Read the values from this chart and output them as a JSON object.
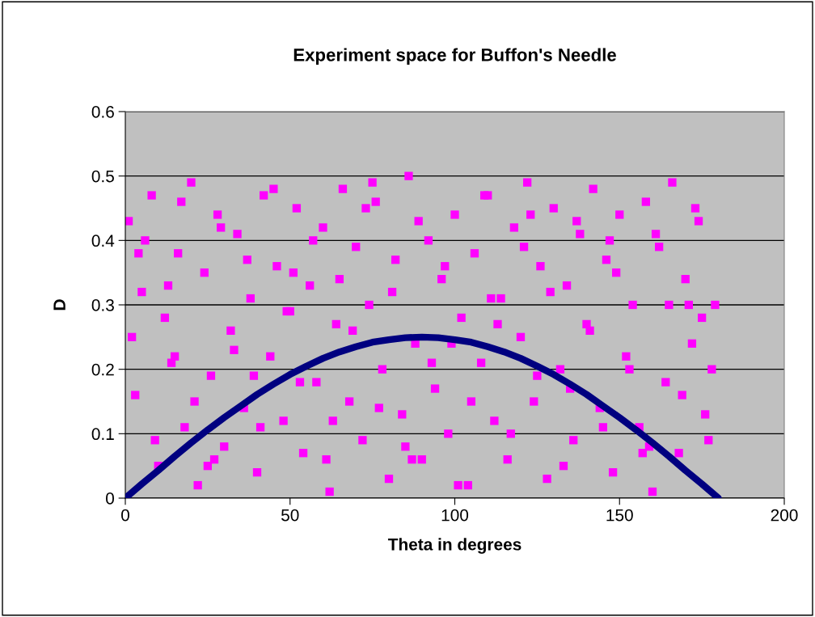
{
  "chart_data": {
    "type": "scatter",
    "title": "Experiment space for Buffon's Needle",
    "xlabel": "Theta in degrees",
    "ylabel": "D",
    "xlim": [
      0,
      200
    ],
    "ylim": [
      0,
      0.6
    ],
    "xticks": [
      0,
      50,
      100,
      150,
      200
    ],
    "yticks": [
      0,
      0.1,
      0.2,
      0.3,
      0.4,
      0.5,
      0.6
    ],
    "grid": "y",
    "legend": false,
    "series": [
      {
        "color": "#ff00ff",
        "marker": "square",
        "x": [
          1,
          3,
          5,
          8,
          10,
          12,
          14,
          16,
          18,
          20,
          22,
          24,
          26,
          28,
          30,
          32,
          34,
          36,
          38,
          40,
          42,
          44,
          46,
          48,
          50,
          52,
          54,
          56,
          58,
          60,
          62,
          64,
          66,
          68,
          70,
          72,
          74,
          76,
          78,
          80,
          82,
          84,
          86,
          88,
          90,
          92,
          94,
          96,
          98,
          100,
          102,
          104,
          106,
          108,
          110,
          112,
          114,
          116,
          118,
          120,
          122,
          124,
          126,
          128,
          130,
          132,
          134,
          136,
          138,
          140,
          142,
          144,
          146,
          148,
          150,
          152,
          154,
          156,
          158,
          160,
          162,
          164,
          166,
          168,
          170,
          172,
          174,
          176,
          178,
          179,
          2,
          6,
          9,
          13,
          17,
          21,
          25,
          29,
          33,
          37,
          41,
          45,
          49,
          53,
          57,
          61,
          65,
          69,
          73,
          77,
          81,
          85,
          89,
          93,
          97,
          101,
          105,
          109,
          113,
          117,
          121,
          125,
          129,
          133,
          137,
          141,
          145,
          149,
          153,
          157,
          161,
          165,
          169,
          173,
          177,
          4,
          15,
          27,
          39,
          51,
          63,
          75,
          87,
          99,
          111,
          123,
          135,
          147,
          159,
          171,
          175
        ],
        "values": [
          0.43,
          0.16,
          0.32,
          0.47,
          0.05,
          0.28,
          0.21,
          0.38,
          0.11,
          0.49,
          0.02,
          0.35,
          0.19,
          0.44,
          0.08,
          0.26,
          0.41,
          0.14,
          0.31,
          0.04,
          0.47,
          0.22,
          0.36,
          0.12,
          0.29,
          0.45,
          0.07,
          0.33,
          0.18,
          0.42,
          0.01,
          0.27,
          0.48,
          0.15,
          0.39,
          0.09,
          0.3,
          0.46,
          0.2,
          0.03,
          0.37,
          0.13,
          0.5,
          0.24,
          0.06,
          0.4,
          0.17,
          0.34,
          0.1,
          0.44,
          0.28,
          0.02,
          0.38,
          0.21,
          0.47,
          0.12,
          0.31,
          0.06,
          0.42,
          0.25,
          0.49,
          0.15,
          0.36,
          0.03,
          0.45,
          0.2,
          0.33,
          0.09,
          0.41,
          0.27,
          0.48,
          0.14,
          0.37,
          0.04,
          0.44,
          0.22,
          0.3,
          0.11,
          0.46,
          0.01,
          0.39,
          0.18,
          0.49,
          0.07,
          0.34,
          0.24,
          0.43,
          0.13,
          0.2,
          0.3,
          0.25,
          0.4,
          0.09,
          0.33,
          0.46,
          0.15,
          0.05,
          0.42,
          0.23,
          0.37,
          0.11,
          0.48,
          0.29,
          0.18,
          0.4,
          0.06,
          0.34,
          0.26,
          0.45,
          0.14,
          0.32,
          0.08,
          0.43,
          0.21,
          0.36,
          0.02,
          0.15,
          0.47,
          0.27,
          0.1,
          0.39,
          0.19,
          0.32,
          0.05,
          0.43,
          0.26,
          0.11,
          0.35,
          0.2,
          0.07,
          0.41,
          0.3,
          0.16,
          0.45,
          0.09,
          0.38,
          0.22,
          0.06,
          0.19,
          0.35,
          0.12,
          0.49,
          0.06,
          0.24,
          0.31,
          0.44,
          0.17,
          0.4,
          0.08,
          0.3,
          0.28
        ]
      },
      {
        "type": "line",
        "color": "#000080",
        "marker": "none",
        "x": [
          0,
          5,
          10,
          15,
          20,
          25,
          30,
          35,
          40,
          45,
          50,
          55,
          60,
          65,
          70,
          75,
          80,
          85,
          90,
          95,
          100,
          105,
          110,
          115,
          120,
          125,
          130,
          135,
          140,
          145,
          150,
          155,
          160,
          165,
          170,
          175,
          180
        ],
        "values": [
          0,
          0.022,
          0.043,
          0.065,
          0.086,
          0.106,
          0.125,
          0.143,
          0.161,
          0.177,
          0.192,
          0.205,
          0.217,
          0.227,
          0.235,
          0.242,
          0.246,
          0.249,
          0.25,
          0.249,
          0.246,
          0.242,
          0.235,
          0.227,
          0.217,
          0.205,
          0.192,
          0.177,
          0.161,
          0.143,
          0.125,
          0.106,
          0.086,
          0.065,
          0.043,
          0.022,
          0
        ]
      }
    ]
  }
}
